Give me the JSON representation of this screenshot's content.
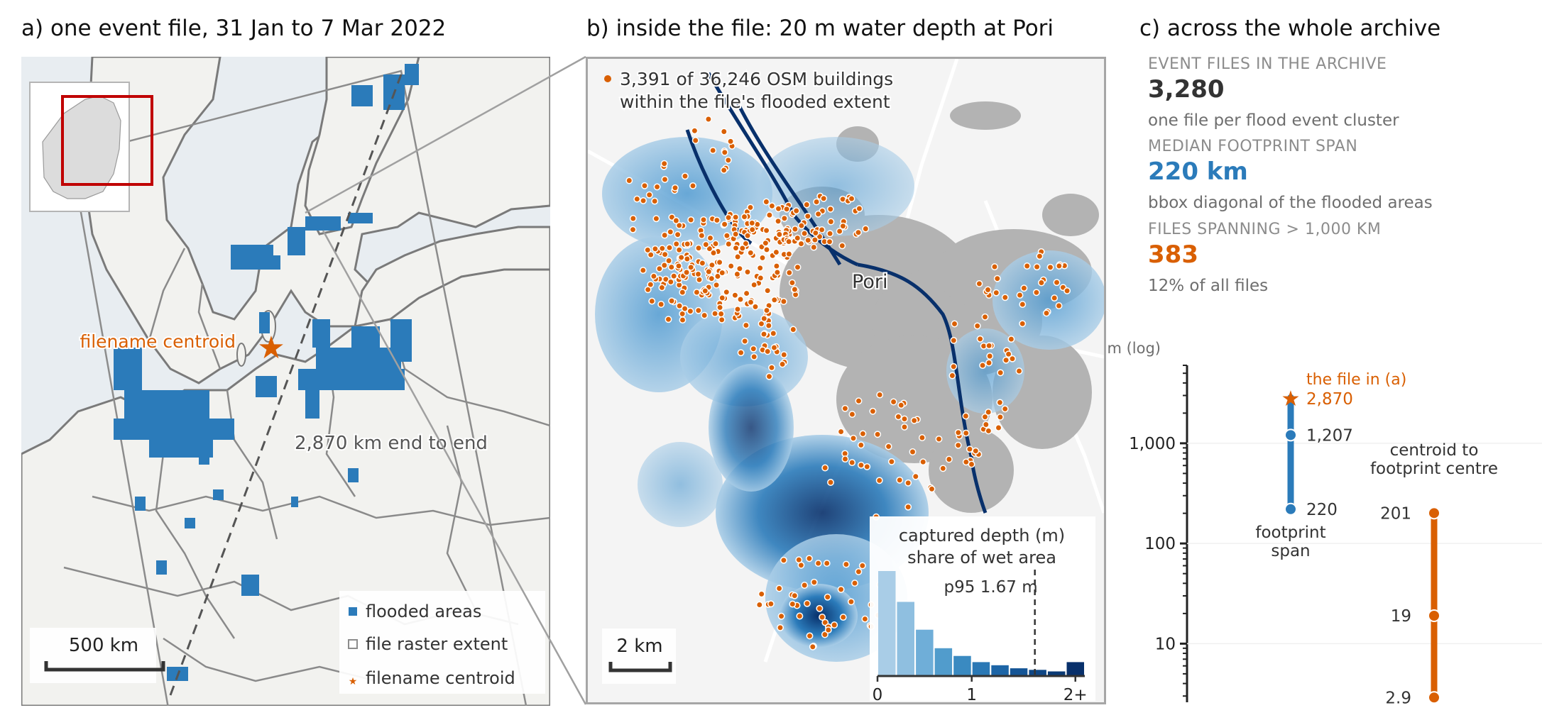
{
  "panel_a": {
    "title": "a) one event file, 31 Jan to 7 Mar 2022",
    "centroid_label": "filename centroid",
    "span_label": "2,870 km end to end",
    "scale_label": "500 km",
    "legend": [
      "flooded areas",
      "file raster extent",
      "filename centroid"
    ]
  },
  "panel_b": {
    "title": "b) inside the file: 20 m water depth at Pori",
    "buildings_note_1": "3,391 of 36,246 OSM buildings",
    "buildings_note_2": "within the file's flooded extent",
    "city_label": "Pori",
    "scale_label": "2 km",
    "inset_title_1": "captured depth (m)",
    "inset_title_2": "share of wet area",
    "p95_label": "p95 1.67 m"
  },
  "panel_c": {
    "title": "c) across the whole archive",
    "stats": [
      {
        "caption": "EVENT FILES IN THE ARCHIVE",
        "value": "3,280",
        "note": "one file per flood event cluster",
        "color": "#333333"
      },
      {
        "caption": "MEDIAN FOOTPRINT SPAN",
        "value": "220 km",
        "note": "bbox diagonal of the flooded areas",
        "color": "#2b7bba"
      },
      {
        "caption": "FILES SPANNING > 1,000 KM",
        "value": "383",
        "note": "12% of all files",
        "color": "#d95f02"
      }
    ],
    "file_label": "the file in (a)",
    "span_caption_1": "footprint",
    "span_caption_2": "span",
    "centroid_caption_1": "centroid to",
    "centroid_caption_2": "footprint centre"
  },
  "colors": {
    "blue": "#2b7bba",
    "orange": "#d95f02",
    "land": "#f2f2ef",
    "sea": "#e8edf1",
    "dark_blue": "#08306b",
    "grey_buildings": "#b3b3b3"
  },
  "chart_data": [
    {
      "type": "histogram",
      "title": "captured depth (m) share of wet area",
      "xlabel": "captured depth (m)",
      "ylabel": "share of wet area",
      "tick_labels": [
        "0",
        "1",
        "2+"
      ],
      "bins": [
        "0-0.2",
        "0.2-0.4",
        "0.4-0.6",
        "0.6-0.8",
        "0.8-1.0",
        "1.0-1.2",
        "1.2-1.4",
        "1.4-1.6",
        "1.6-1.8",
        "1.8-2.0",
        "2.0+"
      ],
      "values": [
        0.34,
        0.24,
        0.15,
        0.09,
        0.065,
        0.045,
        0.035,
        0.025,
        0.02,
        0.015,
        0.045
      ],
      "colors": [
        "#a9cde7",
        "#8fbfe0",
        "#6faed8",
        "#519ccc",
        "#3a8ac1",
        "#2a78b5",
        "#1d65a6",
        "#155596",
        "#0f4685",
        "#0a3a74",
        "#08306b"
      ],
      "xlim": [
        0,
        2.2
      ],
      "annotation": {
        "label": "p95 1.67 m",
        "x": 1.67
      }
    },
    {
      "type": "dot-range",
      "ylabel": "km (log)",
      "y_scale": "log",
      "ylim": [
        2.6,
        6000
      ],
      "y_ticks": [
        "10",
        "100",
        "1,000"
      ],
      "series": [
        {
          "name": "footprint span",
          "color": "#2b7bba",
          "values": [
            220,
            1207
          ],
          "value_labels": [
            "220",
            "1,207"
          ],
          "highlight": {
            "name": "the file in (a)",
            "value": 2870,
            "label": "2,870"
          }
        },
        {
          "name": "centroid to footprint centre",
          "color": "#d95f02",
          "values": [
            2.9,
            19,
            201
          ],
          "value_labels": [
            "2.9",
            "19",
            "201"
          ]
        }
      ]
    }
  ]
}
